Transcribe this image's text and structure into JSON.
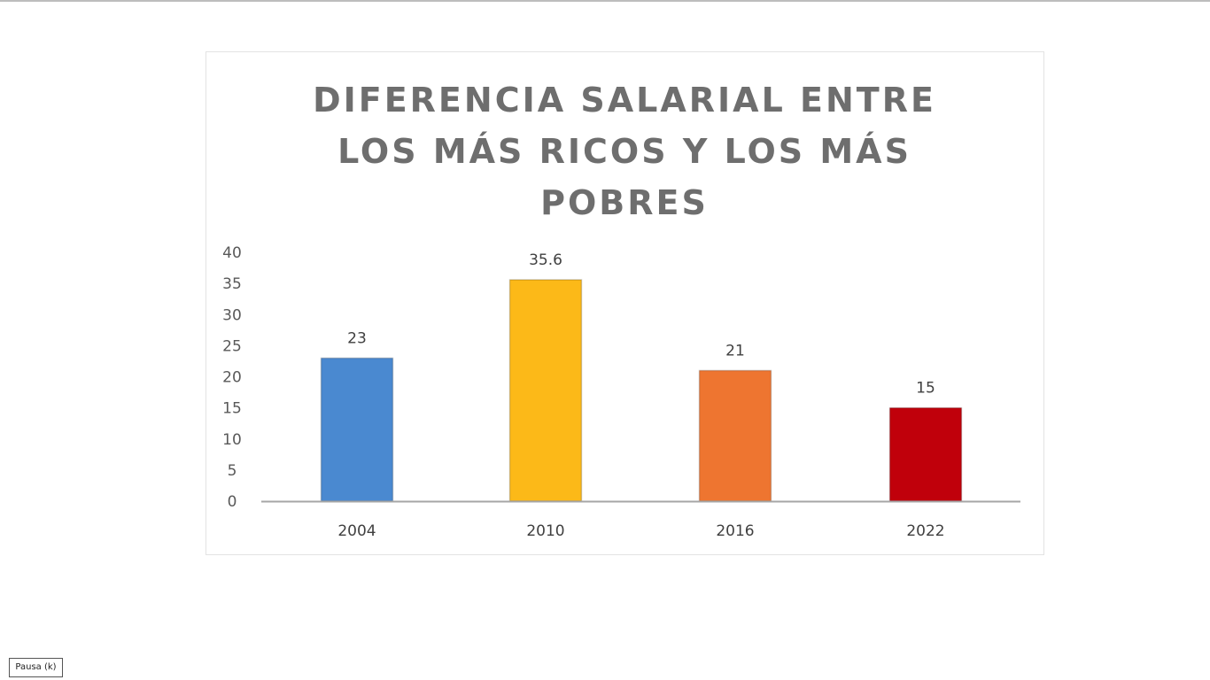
{
  "page": {
    "pause_hint": "Pausa (k)"
  },
  "chart_data": {
    "type": "bar",
    "title_lines": [
      "DIFERENCIA SALARIAL ENTRE",
      "LOS MÁS RICOS Y LOS MÁS",
      "POBRES"
    ],
    "categories": [
      "2004",
      "2010",
      "2016",
      "2022"
    ],
    "values": [
      23,
      35.6,
      21,
      15
    ],
    "value_labels": [
      "23",
      "35.6",
      "21",
      "15"
    ],
    "bar_colors": [
      "#4a89d0",
      "#fcb918",
      "#ee7530",
      "#c0000b"
    ],
    "ylim": [
      0,
      40
    ],
    "yticks": [
      0,
      5,
      10,
      15,
      20,
      25,
      30,
      35,
      40
    ],
    "xlabel": "",
    "ylabel": "",
    "grid": false,
    "legend": "none"
  }
}
